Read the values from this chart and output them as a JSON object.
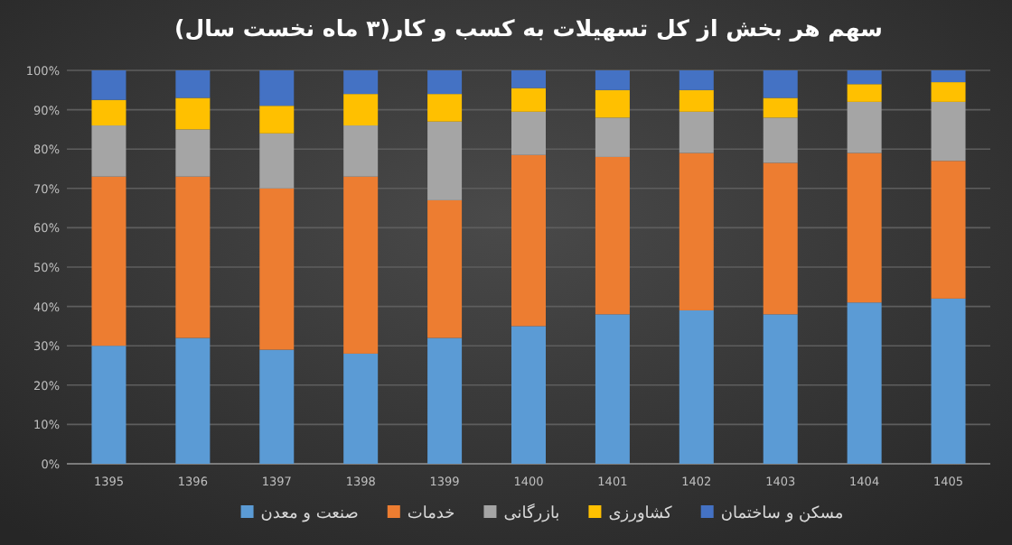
{
  "chart_data": {
    "type": "bar",
    "title": "سهم هر بخش از کل تسهیلات به کسب و کار(۳ ماه نخست سال)",
    "categories": [
      "1395",
      "1396",
      "1397",
      "1398",
      "1399",
      "1400",
      "1401",
      "1402",
      "1403",
      "1404",
      "1405"
    ],
    "stacked": true,
    "grid": "y",
    "legend": "bottom",
    "ylim": [
      0,
      100
    ],
    "yticks": [
      {
        "value": 0,
        "label": "0%"
      },
      {
        "value": 10,
        "label": "10%"
      },
      {
        "value": 20,
        "label": "20%"
      },
      {
        "value": 30,
        "label": "30%"
      },
      {
        "value": 40,
        "label": "40%"
      },
      {
        "value": 50,
        "label": "50%"
      },
      {
        "value": 60,
        "label": "60%"
      },
      {
        "value": 70,
        "label": "70%"
      },
      {
        "value": 80,
        "label": "80%"
      },
      {
        "value": 90,
        "label": "90%"
      },
      {
        "value": 100,
        "label": "100%"
      }
    ],
    "series": [
      {
        "name": "صنعت و معدن",
        "color": "#5b9bd5",
        "values": [
          30,
          32,
          29,
          28,
          32,
          35,
          38,
          39,
          38,
          41,
          42
        ]
      },
      {
        "name": "خدمات",
        "color": "#ed7d31",
        "values": [
          43,
          41,
          41,
          45,
          35,
          43.5,
          40,
          40,
          38.5,
          38,
          35
        ]
      },
      {
        "name": "بازرگانی",
        "color": "#a5a5a5",
        "values": [
          13,
          12,
          14,
          13,
          20,
          11,
          10,
          10.5,
          11.5,
          13,
          15
        ]
      },
      {
        "name": "کشاورزی",
        "color": "#ffc000",
        "values": [
          6.5,
          8,
          7,
          8,
          7,
          6,
          7,
          5.5,
          5,
          4.5,
          5
        ]
      },
      {
        "name": "مسکن و ساختمان",
        "color": "#4472c4",
        "values": [
          7.5,
          7,
          9,
          6,
          6,
          4.5,
          5,
          5,
          7,
          3.5,
          3
        ]
      }
    ]
  }
}
